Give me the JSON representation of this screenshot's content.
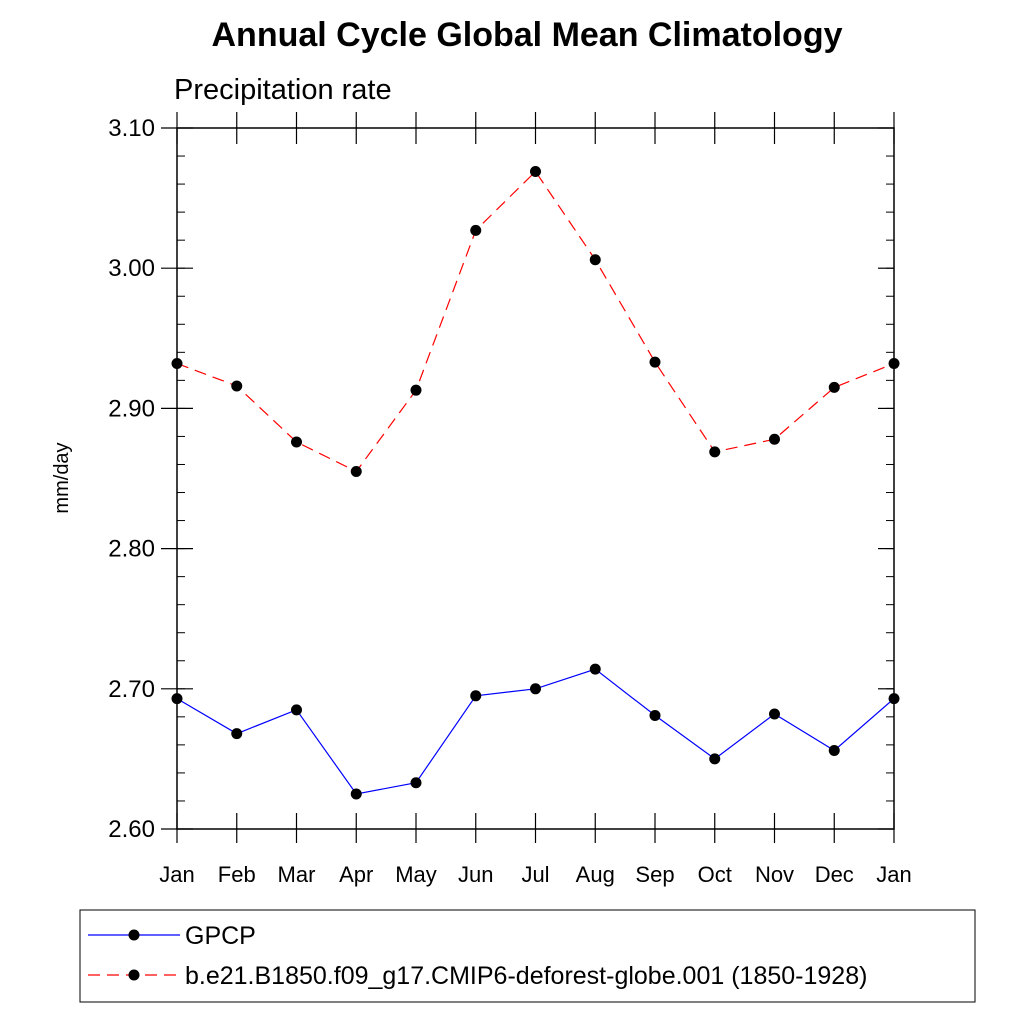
{
  "chart_data": {
    "type": "line",
    "title": "Annual Cycle Global Mean Climatology",
    "subtitle": "Precipitation rate",
    "xlabel": "",
    "ylabel": "mm/day",
    "categories": [
      "Jan",
      "Feb",
      "Mar",
      "Apr",
      "May",
      "Jun",
      "Jul",
      "Aug",
      "Sep",
      "Oct",
      "Nov",
      "Dec",
      "Jan"
    ],
    "ylim": [
      2.6,
      3.1
    ],
    "yticks": [
      "2.60",
      "2.70",
      "2.80",
      "2.90",
      "3.00",
      "3.10"
    ],
    "grid": false,
    "legend_position": "bottom",
    "series": [
      {
        "name": "GPCP",
        "color": "#0000ff",
        "style": "solid",
        "marker": "filled-circle",
        "values": [
          2.693,
          2.668,
          2.685,
          2.625,
          2.633,
          2.695,
          2.7,
          2.714,
          2.681,
          2.65,
          2.682,
          2.656,
          2.693
        ]
      },
      {
        "name": "b.e21.B1850.f09_g17.CMIP6-deforest-globe.001 (1850-1928)",
        "color": "#ff0000",
        "style": "dashed",
        "marker": "filled-circle",
        "values": [
          2.932,
          2.916,
          2.876,
          2.855,
          2.913,
          3.027,
          3.069,
          3.006,
          2.933,
          2.869,
          2.878,
          2.915,
          2.932
        ]
      }
    ]
  }
}
